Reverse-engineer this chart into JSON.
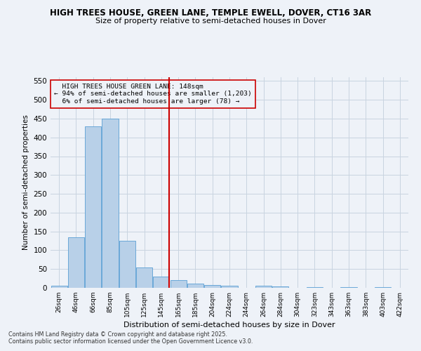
{
  "title": "HIGH TREES HOUSE, GREEN LANE, TEMPLE EWELL, DOVER, CT16 3AR",
  "subtitle": "Size of property relative to semi-detached houses in Dover",
  "xlabel": "Distribution of semi-detached houses by size in Dover",
  "ylabel": "Number of semi-detached properties",
  "categories": [
    "26sqm",
    "46sqm",
    "66sqm",
    "85sqm",
    "105sqm",
    "125sqm",
    "145sqm",
    "165sqm",
    "185sqm",
    "204sqm",
    "224sqm",
    "244sqm",
    "264sqm",
    "284sqm",
    "304sqm",
    "323sqm",
    "343sqm",
    "363sqm",
    "383sqm",
    "403sqm",
    "422sqm"
  ],
  "values": [
    5,
    135,
    430,
    450,
    125,
    55,
    30,
    20,
    12,
    8,
    5,
    0,
    5,
    4,
    0,
    2,
    0,
    1,
    0,
    1,
    0
  ],
  "bar_color": "#b8d0e8",
  "bar_edge_color": "#5a9fd4",
  "marker_bin_index": 6,
  "marker_label": "HIGH TREES HOUSE GREEN LANE: 148sqm",
  "marker_smaller_pct": "94%",
  "marker_smaller_n": "1,203",
  "marker_larger_pct": "6%",
  "marker_larger_n": "78",
  "marker_color": "#cc0000",
  "annotation_box_color": "#cc0000",
  "ylim": [
    0,
    560
  ],
  "yticks": [
    0,
    50,
    100,
    150,
    200,
    250,
    300,
    350,
    400,
    450,
    500,
    550
  ],
  "grid_color": "#c8d4e0",
  "bg_color": "#eef2f8",
  "title_fontsize": 8.5,
  "subtitle_fontsize": 8,
  "footer1": "Contains HM Land Registry data © Crown copyright and database right 2025.",
  "footer2": "Contains public sector information licensed under the Open Government Licence v3.0."
}
